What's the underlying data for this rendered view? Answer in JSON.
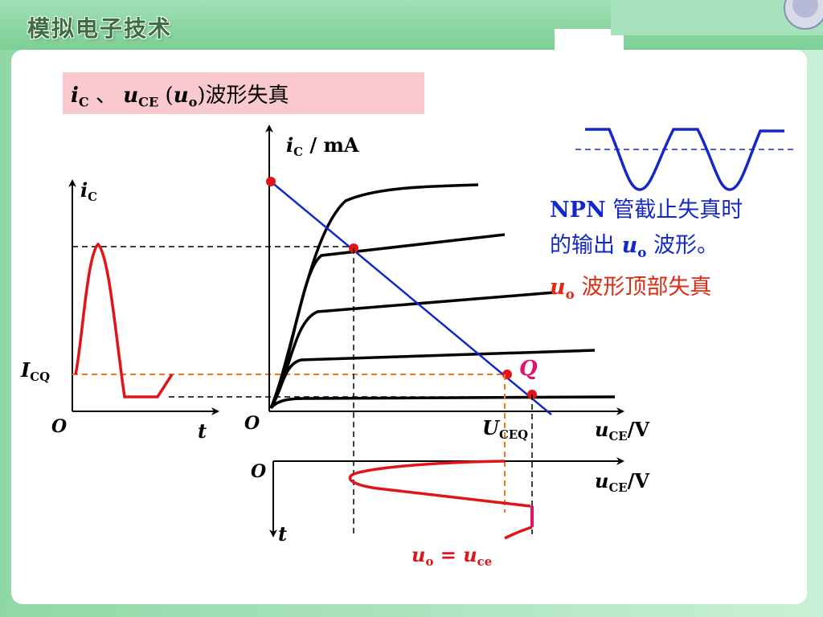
{
  "header": {
    "title": "模拟电子技术"
  },
  "slide": {
    "title": {
      "i": "i",
      "i_sub": "C",
      "sep": " 、 ",
      "u": "u",
      "u_sub": "CE",
      "paren_open": " (",
      "uo": "u",
      "uo_sub": "o",
      "paren_close": ")",
      "tail": "波形失真"
    }
  },
  "left_graph": {
    "y_axis": {
      "var": "i",
      "sub": "C"
    },
    "iq_label": {
      "var": "I",
      "sub": "CQ"
    },
    "origin": "O",
    "x_axis": "t"
  },
  "main_graph": {
    "y_axis": {
      "var": "i",
      "sub": "C",
      "unit": " / mA"
    },
    "origin": "O",
    "q_label": "Q",
    "uceq_label": {
      "var": "U",
      "sub": "CEQ"
    },
    "x_axis": {
      "var": "u",
      "sub": "CE",
      "unit": "/V"
    }
  },
  "bottom_graph": {
    "origin": "O",
    "x_axis": {
      "var": "u",
      "sub": "CE",
      "unit": "/V"
    },
    "t_axis": "t",
    "formula": {
      "lhs": "u",
      "lhs_sub": "o",
      "eq": " = ",
      "rhs": "u",
      "rhs_sub": "ce"
    }
  },
  "description": {
    "line1": {
      "bold": "NPN",
      "text": " 管截止失真时"
    },
    "line2": {
      "text": "的输出 ",
      "var": "u",
      "sub": "o",
      "tail": " 波形。"
    },
    "line3": {
      "var": "u",
      "sub": "o",
      "tail": " 波形顶部失真"
    }
  },
  "colors": {
    "load_line": "#1428c8",
    "waveform": "#e0141a",
    "q_point": "#e0141a",
    "description_text": "#1428c8",
    "highlight_text": "#e02a12",
    "title_bg": "#f9c9cd",
    "frame_green": "#7fd39a",
    "dashed_orange": "#f07a14"
  }
}
